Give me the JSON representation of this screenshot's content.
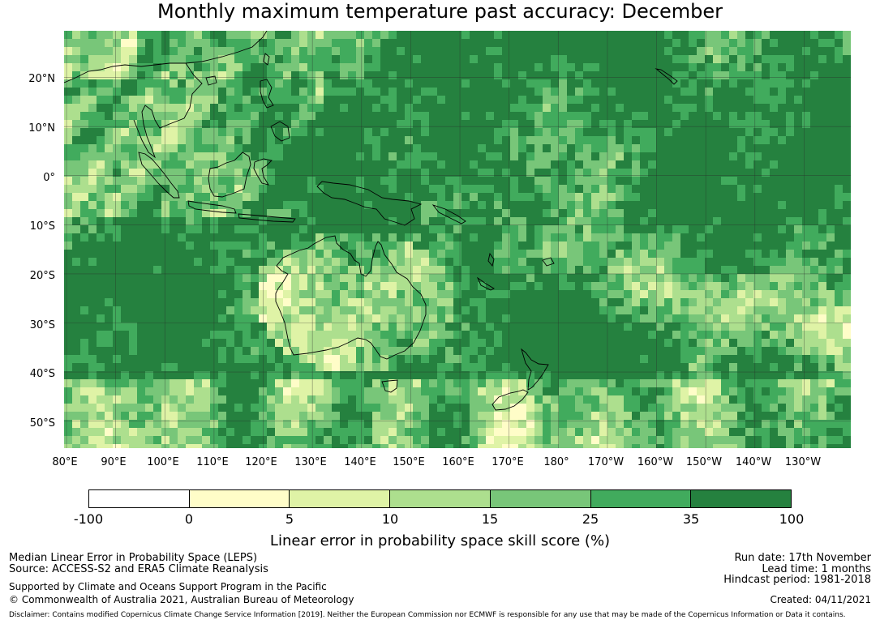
{
  "title": "Monthly maximum temperature past accuracy: December",
  "map": {
    "lat_labels": [
      "20°N",
      "10°N",
      "0°",
      "10°S",
      "20°S",
      "30°S",
      "40°S",
      "50°S"
    ],
    "lon_labels": [
      "80°E",
      "90°E",
      "100°E",
      "110°E",
      "120°E",
      "130°E",
      "140°E",
      "150°E",
      "160°E",
      "170°E",
      "180°",
      "170°W",
      "160°W",
      "150°W",
      "140°W",
      "130°W"
    ],
    "extent": {
      "lon_min": 79.5,
      "lon_max": 239.5,
      "lat_min": -55.5,
      "lat_max": 29.5
    },
    "colors": {
      "c_neg": "#ffffff",
      "c0": "#fffdc8",
      "c5": "#dff3a6",
      "c10": "#addf8e",
      "c15": "#78c679",
      "c25": "#41ab5d",
      "c35": "#25813f",
      "coast": "#000000",
      "grid": "#333333"
    }
  },
  "colorbar": {
    "ticks": [
      "-100",
      "0",
      "5",
      "10",
      "15",
      "25",
      "35",
      "100"
    ],
    "label": "Linear error in probability space skill score (%)"
  },
  "footer": {
    "left_line1": "Median Linear Error in Probability Space (LEPS)",
    "left_line2": "Source: ACCESS-S2 and ERA5 Climate Reanalysis",
    "left_line3": "Supported by Climate and Oceans Support Program in the Pacific",
    "left_line4": "© Commonwealth of Australia 2021, Australian Bureau of Meteorology",
    "right_line1": "Run date: 17th November",
    "right_line2": "Lead time: 1 months",
    "right_line3": "Hindcast period: 1981-2018",
    "right_line4": "Created: 04/11/2021",
    "disclaimer": "Disclaimer: Contains modified Copernicus Climate Change Service Information [2019]. Neither the European Commission nor ECMWF is responsible for any use that may be made of the Copernicus Information or Data it contains."
  }
}
